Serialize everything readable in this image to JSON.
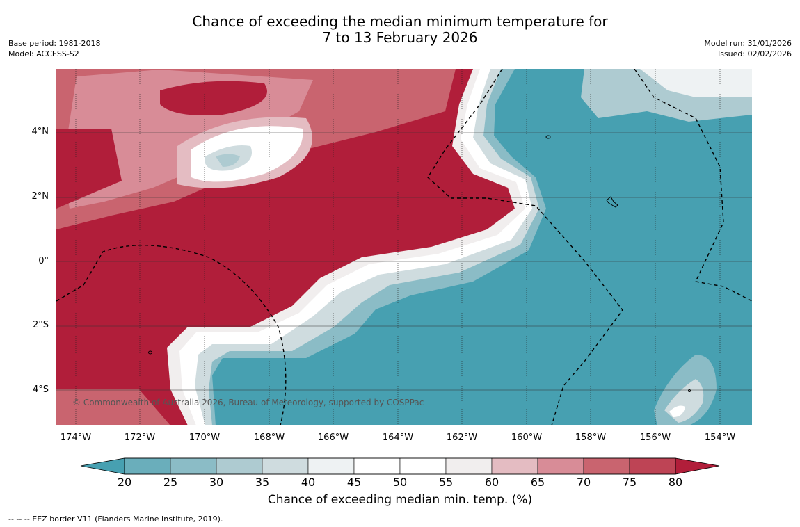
{
  "title_line1": "Chance of exceeding the median minimum temperature for",
  "title_line2": "7 to 13 February 2026",
  "base_period": "Base period: 1981-2018",
  "model": "Model: ACCESS-S2",
  "model_run": "Model run: 31/01/2026",
  "issued": "Issued: 02/02/2026",
  "copyright": "© Commonwealth of Australia 2026, Bureau of Meteorology, supported by COSPPac",
  "lat_labels": [
    "4°N",
    "2°N",
    "0°",
    "2°S",
    "4°S"
  ],
  "lon_labels": [
    "174°W",
    "172°W",
    "170°W",
    "168°W",
    "166°W",
    "164°W",
    "162°W",
    "160°W",
    "158°W",
    "156°W",
    "154°W"
  ],
  "colorbar": {
    "ticks": [
      "20",
      "25",
      "30",
      "35",
      "40",
      "45",
      "50",
      "55",
      "60",
      "65",
      "70",
      "75",
      "80"
    ],
    "label": "Chance of exceeding median min. temp. (%)",
    "colors": [
      "#47a0b1",
      "#6aaebb",
      "#8bbcc6",
      "#aecbd1",
      "#cfdcdf",
      "#eef2f3",
      "#ffffff",
      "#ffffff",
      "#f1eeee",
      "#e4bcc2",
      "#d88c97",
      "#c9646f",
      "#be4455",
      "#b11e3a"
    ]
  },
  "footer": "--  --  -- EEZ border V11 (Flanders Marine Institute, 2019).",
  "palette": {
    "blue": "#47a0b1",
    "red": "#b11e3a"
  }
}
